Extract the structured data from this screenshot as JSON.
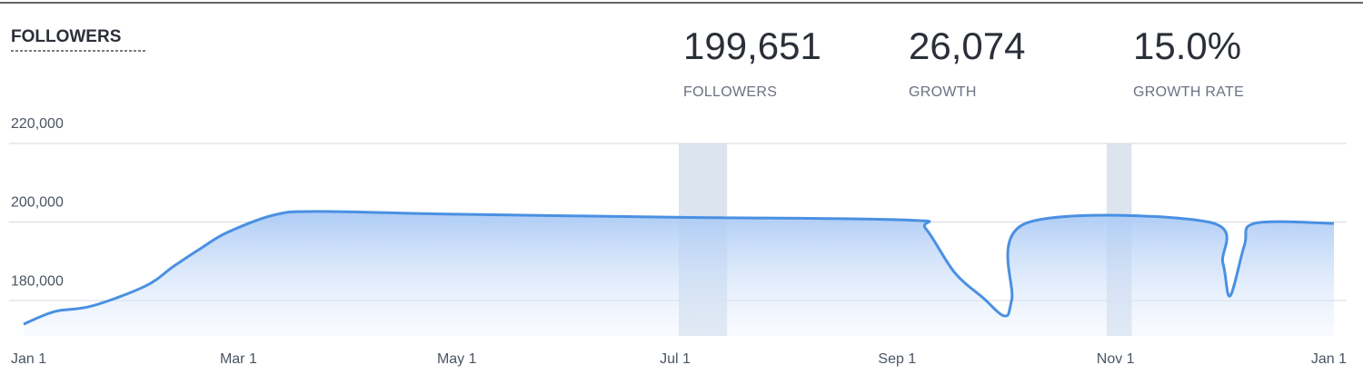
{
  "chart_data": {
    "type": "area",
    "title": "FOLLOWERS",
    "stats": [
      {
        "value": "199,651",
        "label": "FOLLOWERS"
      },
      {
        "value": "26,074",
        "label": "GROWTH"
      },
      {
        "value": "15.0%",
        "label": "GROWTH RATE"
      }
    ],
    "x": [
      0,
      8.6,
      19,
      34,
      42,
      50,
      57,
      70,
      82,
      120,
      184,
      247,
      252,
      260,
      268,
      274,
      276,
      280,
      331,
      335,
      337,
      341,
      344,
      366
    ],
    "series": [
      {
        "name": "Followers",
        "color": "#4a90e2",
        "values": [
          174000,
          177200,
          178600,
          183700,
          188800,
          193600,
          197400,
          201800,
          202700,
          202000,
          201200,
          200500,
          198300,
          187200,
          180700,
          176100,
          180200,
          199700,
          200000,
          189500,
          181200,
          194100,
          199700,
          199651
        ]
      }
    ],
    "xlim": [
      0,
      366
    ],
    "xticks": [
      {
        "value": 0,
        "label": "Jan 1"
      },
      {
        "value": 60,
        "label": "Mar 1"
      },
      {
        "value": 121,
        "label": "May 1"
      },
      {
        "value": 182,
        "label": "Jul 1"
      },
      {
        "value": 244,
        "label": "Sep 1"
      },
      {
        "value": 305,
        "label": "Nov 1"
      },
      {
        "value": 366,
        "label": "Jan 1"
      }
    ],
    "ylim": [
      171000,
      220000
    ],
    "yticks": [
      {
        "value": 180000,
        "label": "180,000"
      },
      {
        "value": 200000,
        "label": "200,000"
      },
      {
        "value": 220000,
        "label": "220,000"
      }
    ],
    "highlights": [
      [
        183,
        196.5
      ],
      [
        302.5,
        309.5
      ]
    ],
    "highlight_color": "#c9d5e6",
    "grid": true
  }
}
